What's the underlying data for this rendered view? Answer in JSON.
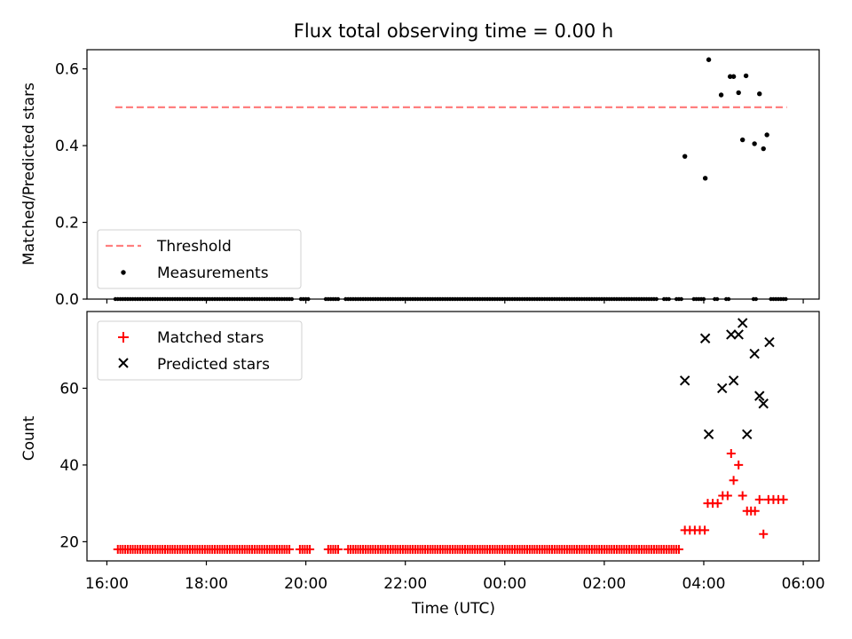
{
  "figure_title": "Flux total observing time = 0.00 h",
  "chart_data": [
    {
      "type": "scatter",
      "panel": "top",
      "ylabel": "Matched/Predicted stars",
      "ylim": [
        0,
        0.65
      ],
      "yticks": [
        "0.0",
        "0.2",
        "0.4",
        "0.6"
      ],
      "xlim": [
        15.6,
        30.32
      ],
      "grid": false,
      "legend_position": "lower-left",
      "threshold": {
        "name": "Threshold",
        "value": 0.5,
        "x_start": 16.17,
        "x_end": 29.67,
        "color": "#ff7f7f",
        "style": "dashed"
      },
      "series": [
        {
          "name": "Measurements",
          "color": "#000000",
          "marker": "dot",
          "zero_x_ranges": [
            [
              16.17,
              19.75
            ],
            [
              19.9,
              20.05
            ],
            [
              20.4,
              20.65
            ],
            [
              20.8,
              27.05
            ],
            [
              27.2,
              27.3
            ],
            [
              27.45,
              27.57
            ],
            [
              27.8,
              28.0
            ],
            [
              28.22,
              28.3
            ],
            [
              28.45,
              28.53
            ],
            [
              29.0,
              29.05
            ],
            [
              29.35,
              29.67
            ]
          ],
          "points": [
            [
              27.62,
              0.372
            ],
            [
              28.03,
              0.315
            ],
            [
              28.1,
              0.624
            ],
            [
              28.35,
              0.532
            ],
            [
              28.53,
              0.58
            ],
            [
              28.6,
              0.58
            ],
            [
              28.7,
              0.538
            ],
            [
              28.78,
              0.415
            ],
            [
              28.85,
              0.582
            ],
            [
              29.02,
              0.405
            ],
            [
              29.12,
              0.535
            ],
            [
              29.2,
              0.392
            ],
            [
              29.27,
              0.428
            ]
          ]
        }
      ]
    },
    {
      "type": "scatter",
      "panel": "bottom",
      "xlabel": "Time (UTC)",
      "ylabel": "Count",
      "ylim": [
        15,
        80
      ],
      "yticks": [
        "20",
        "40",
        "60"
      ],
      "xlim": [
        15.6,
        30.32
      ],
      "xticks": [
        [
          16,
          "16:00"
        ],
        [
          18,
          "18:00"
        ],
        [
          20,
          "20:00"
        ],
        [
          22,
          "22:00"
        ],
        [
          24,
          "00:00"
        ],
        [
          26,
          "02:00"
        ],
        [
          28,
          "04:00"
        ],
        [
          30,
          "06:00"
        ]
      ],
      "grid": false,
      "legend_position": "top-left",
      "series": [
        {
          "name": "Matched stars",
          "color": "#ff0000",
          "marker": "plus",
          "baseline_value": 18,
          "baseline_x_ranges": [
            [
              16.22,
              19.7
            ],
            [
              19.88,
              20.1
            ],
            [
              20.45,
              20.65
            ],
            [
              20.85,
              27.5
            ]
          ],
          "points": [
            [
              27.62,
              23
            ],
            [
              27.72,
              23
            ],
            [
              27.82,
              23
            ],
            [
              27.92,
              23
            ],
            [
              28.02,
              23
            ],
            [
              28.08,
              30
            ],
            [
              28.18,
              30
            ],
            [
              28.28,
              30
            ],
            [
              28.38,
              32
            ],
            [
              28.48,
              32
            ],
            [
              28.55,
              43
            ],
            [
              28.6,
              36
            ],
            [
              28.7,
              40
            ],
            [
              28.78,
              32
            ],
            [
              28.87,
              28
            ],
            [
              28.95,
              28
            ],
            [
              29.03,
              28
            ],
            [
              29.12,
              31
            ],
            [
              29.2,
              22
            ],
            [
              29.3,
              31
            ],
            [
              29.4,
              31
            ],
            [
              29.5,
              31
            ],
            [
              29.6,
              31
            ]
          ]
        },
        {
          "name": "Predicted stars",
          "color": "#000000",
          "marker": "x",
          "points": [
            [
              27.62,
              62
            ],
            [
              28.03,
              73
            ],
            [
              28.1,
              48
            ],
            [
              28.37,
              60
            ],
            [
              28.55,
              74
            ],
            [
              28.6,
              62
            ],
            [
              28.7,
              74
            ],
            [
              28.78,
              77
            ],
            [
              28.87,
              48
            ],
            [
              29.02,
              69
            ],
            [
              29.12,
              58
            ],
            [
              29.2,
              56
            ],
            [
              29.32,
              72
            ]
          ]
        }
      ]
    }
  ]
}
